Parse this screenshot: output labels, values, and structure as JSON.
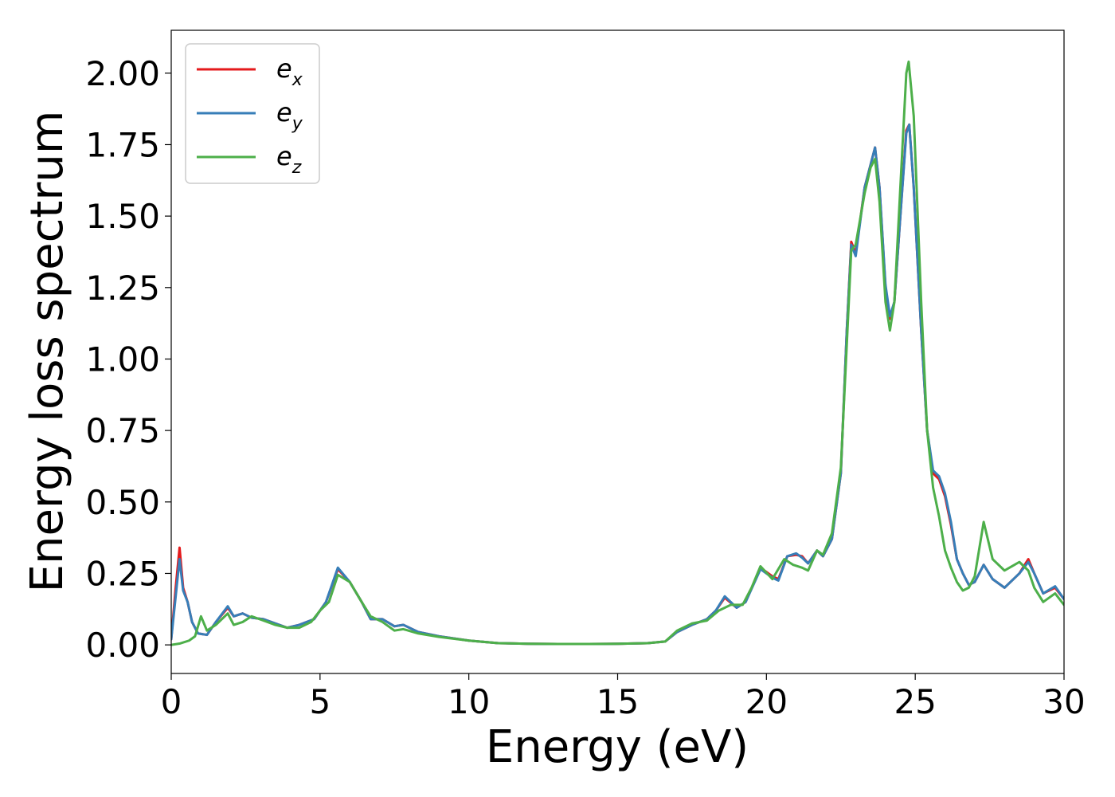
{
  "chart_data": {
    "type": "line",
    "xlabel": "Energy (eV)",
    "ylabel": "Energy loss spectrum",
    "xlim": [
      0,
      30
    ],
    "ylim": [
      -0.1,
      2.15
    ],
    "xticks": [
      0,
      5,
      10,
      15,
      20,
      25,
      30
    ],
    "xtick_labels": [
      "0",
      "5",
      "10",
      "15",
      "20",
      "25",
      "30"
    ],
    "yticks": [
      0.0,
      0.25,
      0.5,
      0.75,
      1.0,
      1.25,
      1.5,
      1.75,
      2.0
    ],
    "ytick_labels": [
      "0.00",
      "0.25",
      "0.50",
      "0.75",
      "1.00",
      "1.25",
      "1.50",
      "1.75",
      "2.00"
    ],
    "grid": false,
    "legend_position": "top-left",
    "series": [
      {
        "name": "e",
        "subscript": "x",
        "color": "#e41a1c",
        "points": [
          [
            0,
            0.02
          ],
          [
            0.15,
            0.2
          ],
          [
            0.28,
            0.34
          ],
          [
            0.4,
            0.2
          ],
          [
            0.55,
            0.15
          ],
          [
            0.7,
            0.08
          ],
          [
            0.9,
            0.04
          ],
          [
            1.2,
            0.035
          ],
          [
            1.5,
            0.08
          ],
          [
            1.9,
            0.13
          ],
          [
            2.1,
            0.1
          ],
          [
            2.4,
            0.11
          ],
          [
            2.7,
            0.095
          ],
          [
            3.1,
            0.09
          ],
          [
            3.5,
            0.075
          ],
          [
            3.9,
            0.06
          ],
          [
            4.3,
            0.07
          ],
          [
            4.8,
            0.09
          ],
          [
            5.2,
            0.15
          ],
          [
            5.6,
            0.265
          ],
          [
            6.0,
            0.22
          ],
          [
            6.4,
            0.15
          ],
          [
            6.7,
            0.09
          ],
          [
            7.1,
            0.09
          ],
          [
            7.5,
            0.065
          ],
          [
            7.8,
            0.07
          ],
          [
            8.3,
            0.045
          ],
          [
            9.0,
            0.03
          ],
          [
            10.0,
            0.015
          ],
          [
            11.0,
            0.006
          ],
          [
            12.0,
            0.004
          ],
          [
            13.0,
            0.003
          ],
          [
            14.0,
            0.003
          ],
          [
            15.0,
            0.004
          ],
          [
            16.0,
            0.006
          ],
          [
            16.6,
            0.012
          ],
          [
            17.0,
            0.045
          ],
          [
            17.5,
            0.07
          ],
          [
            18.0,
            0.09
          ],
          [
            18.3,
            0.12
          ],
          [
            18.6,
            0.165
          ],
          [
            19.0,
            0.13
          ],
          [
            19.3,
            0.15
          ],
          [
            19.8,
            0.27
          ],
          [
            20.2,
            0.24
          ],
          [
            20.4,
            0.23
          ],
          [
            20.7,
            0.31
          ],
          [
            21.0,
            0.315
          ],
          [
            21.2,
            0.31
          ],
          [
            21.4,
            0.285
          ],
          [
            21.7,
            0.33
          ],
          [
            21.9,
            0.31
          ],
          [
            22.2,
            0.37
          ],
          [
            22.5,
            0.6
          ],
          [
            22.7,
            1.1
          ],
          [
            22.85,
            1.41
          ],
          [
            23.0,
            1.37
          ],
          [
            23.3,
            1.6
          ],
          [
            23.5,
            1.68
          ],
          [
            23.65,
            1.74
          ],
          [
            23.8,
            1.6
          ],
          [
            24.0,
            1.25
          ],
          [
            24.15,
            1.14
          ],
          [
            24.3,
            1.2
          ],
          [
            24.5,
            1.5
          ],
          [
            24.7,
            1.8
          ],
          [
            24.8,
            1.82
          ],
          [
            24.95,
            1.6
          ],
          [
            25.2,
            1.1
          ],
          [
            25.4,
            0.75
          ],
          [
            25.6,
            0.6
          ],
          [
            25.8,
            0.58
          ],
          [
            26.0,
            0.52
          ],
          [
            26.2,
            0.42
          ],
          [
            26.4,
            0.3
          ],
          [
            26.6,
            0.25
          ],
          [
            26.8,
            0.21
          ],
          [
            27.0,
            0.22
          ],
          [
            27.3,
            0.28
          ],
          [
            27.6,
            0.23
          ],
          [
            28.0,
            0.2
          ],
          [
            28.5,
            0.25
          ],
          [
            28.8,
            0.3
          ],
          [
            29.0,
            0.25
          ],
          [
            29.3,
            0.18
          ],
          [
            29.7,
            0.2
          ],
          [
            30.0,
            0.16
          ]
        ]
      },
      {
        "name": "e",
        "subscript": "y",
        "color": "#377eb8",
        "points": [
          [
            0,
            0.02
          ],
          [
            0.15,
            0.17
          ],
          [
            0.28,
            0.3
          ],
          [
            0.4,
            0.19
          ],
          [
            0.55,
            0.15
          ],
          [
            0.7,
            0.08
          ],
          [
            0.9,
            0.04
          ],
          [
            1.2,
            0.035
          ],
          [
            1.5,
            0.08
          ],
          [
            1.9,
            0.135
          ],
          [
            2.1,
            0.1
          ],
          [
            2.4,
            0.11
          ],
          [
            2.7,
            0.095
          ],
          [
            3.1,
            0.09
          ],
          [
            3.5,
            0.075
          ],
          [
            3.9,
            0.06
          ],
          [
            4.3,
            0.07
          ],
          [
            4.8,
            0.09
          ],
          [
            5.2,
            0.15
          ],
          [
            5.6,
            0.27
          ],
          [
            6.0,
            0.22
          ],
          [
            6.4,
            0.15
          ],
          [
            6.7,
            0.09
          ],
          [
            7.1,
            0.09
          ],
          [
            7.5,
            0.065
          ],
          [
            7.8,
            0.07
          ],
          [
            8.3,
            0.045
          ],
          [
            9.0,
            0.03
          ],
          [
            10.0,
            0.015
          ],
          [
            11.0,
            0.006
          ],
          [
            12.0,
            0.004
          ],
          [
            13.0,
            0.003
          ],
          [
            14.0,
            0.003
          ],
          [
            15.0,
            0.004
          ],
          [
            16.0,
            0.006
          ],
          [
            16.6,
            0.012
          ],
          [
            17.0,
            0.045
          ],
          [
            17.5,
            0.07
          ],
          [
            18.0,
            0.09
          ],
          [
            18.3,
            0.12
          ],
          [
            18.6,
            0.17
          ],
          [
            19.0,
            0.13
          ],
          [
            19.3,
            0.15
          ],
          [
            19.8,
            0.265
          ],
          [
            20.2,
            0.235
          ],
          [
            20.4,
            0.225
          ],
          [
            20.7,
            0.31
          ],
          [
            21.0,
            0.32
          ],
          [
            21.2,
            0.305
          ],
          [
            21.4,
            0.285
          ],
          [
            21.7,
            0.33
          ],
          [
            21.9,
            0.31
          ],
          [
            22.2,
            0.37
          ],
          [
            22.5,
            0.6
          ],
          [
            22.7,
            1.1
          ],
          [
            22.85,
            1.4
          ],
          [
            23.0,
            1.36
          ],
          [
            23.3,
            1.6
          ],
          [
            23.5,
            1.68
          ],
          [
            23.65,
            1.74
          ],
          [
            23.8,
            1.6
          ],
          [
            24.0,
            1.26
          ],
          [
            24.15,
            1.15
          ],
          [
            24.3,
            1.2
          ],
          [
            24.5,
            1.5
          ],
          [
            24.7,
            1.79
          ],
          [
            24.8,
            1.82
          ],
          [
            24.95,
            1.6
          ],
          [
            25.2,
            1.1
          ],
          [
            25.4,
            0.75
          ],
          [
            25.6,
            0.61
          ],
          [
            25.8,
            0.59
          ],
          [
            26.0,
            0.53
          ],
          [
            26.2,
            0.43
          ],
          [
            26.4,
            0.3
          ],
          [
            26.6,
            0.25
          ],
          [
            26.8,
            0.21
          ],
          [
            27.0,
            0.22
          ],
          [
            27.3,
            0.28
          ],
          [
            27.6,
            0.23
          ],
          [
            28.0,
            0.2
          ],
          [
            28.5,
            0.25
          ],
          [
            28.8,
            0.29
          ],
          [
            29.0,
            0.25
          ],
          [
            29.3,
            0.18
          ],
          [
            29.7,
            0.205
          ],
          [
            30.0,
            0.16
          ]
        ]
      },
      {
        "name": "e",
        "subscript": "z",
        "color": "#4daf4a",
        "points": [
          [
            0,
            0.0
          ],
          [
            0.3,
            0.005
          ],
          [
            0.6,
            0.015
          ],
          [
            0.8,
            0.03
          ],
          [
            1.0,
            0.1
          ],
          [
            1.2,
            0.05
          ],
          [
            1.5,
            0.07
          ],
          [
            1.9,
            0.11
          ],
          [
            2.1,
            0.07
          ],
          [
            2.4,
            0.08
          ],
          [
            2.7,
            0.1
          ],
          [
            3.1,
            0.085
          ],
          [
            3.5,
            0.07
          ],
          [
            3.9,
            0.06
          ],
          [
            4.3,
            0.06
          ],
          [
            4.7,
            0.08
          ],
          [
            5.0,
            0.12
          ],
          [
            5.3,
            0.15
          ],
          [
            5.6,
            0.245
          ],
          [
            6.0,
            0.22
          ],
          [
            6.4,
            0.15
          ],
          [
            6.7,
            0.1
          ],
          [
            7.1,
            0.08
          ],
          [
            7.5,
            0.05
          ],
          [
            7.8,
            0.055
          ],
          [
            8.3,
            0.04
          ],
          [
            9.0,
            0.028
          ],
          [
            10.0,
            0.015
          ],
          [
            11.0,
            0.006
          ],
          [
            12.0,
            0.004
          ],
          [
            13.0,
            0.003
          ],
          [
            14.0,
            0.003
          ],
          [
            15.0,
            0.004
          ],
          [
            16.0,
            0.006
          ],
          [
            16.6,
            0.012
          ],
          [
            17.0,
            0.05
          ],
          [
            17.5,
            0.075
          ],
          [
            18.0,
            0.085
          ],
          [
            18.4,
            0.12
          ],
          [
            18.8,
            0.14
          ],
          [
            19.2,
            0.14
          ],
          [
            19.5,
            0.2
          ],
          [
            19.8,
            0.275
          ],
          [
            20.2,
            0.23
          ],
          [
            20.6,
            0.3
          ],
          [
            20.9,
            0.28
          ],
          [
            21.2,
            0.27
          ],
          [
            21.4,
            0.26
          ],
          [
            21.7,
            0.33
          ],
          [
            21.9,
            0.315
          ],
          [
            22.2,
            0.39
          ],
          [
            22.5,
            0.62
          ],
          [
            22.7,
            1.05
          ],
          [
            22.85,
            1.38
          ],
          [
            23.0,
            1.4
          ],
          [
            23.3,
            1.58
          ],
          [
            23.5,
            1.67
          ],
          [
            23.65,
            1.7
          ],
          [
            23.8,
            1.55
          ],
          [
            24.0,
            1.2
          ],
          [
            24.15,
            1.1
          ],
          [
            24.3,
            1.2
          ],
          [
            24.5,
            1.6
          ],
          [
            24.7,
            2.0
          ],
          [
            24.78,
            2.04
          ],
          [
            24.95,
            1.85
          ],
          [
            25.2,
            1.2
          ],
          [
            25.4,
            0.75
          ],
          [
            25.6,
            0.55
          ],
          [
            25.8,
            0.45
          ],
          [
            26.0,
            0.33
          ],
          [
            26.2,
            0.27
          ],
          [
            26.4,
            0.22
          ],
          [
            26.6,
            0.19
          ],
          [
            26.8,
            0.2
          ],
          [
            27.0,
            0.24
          ],
          [
            27.3,
            0.43
          ],
          [
            27.6,
            0.3
          ],
          [
            28.0,
            0.26
          ],
          [
            28.5,
            0.29
          ],
          [
            28.8,
            0.26
          ],
          [
            29.0,
            0.2
          ],
          [
            29.3,
            0.15
          ],
          [
            29.7,
            0.18
          ],
          [
            30.0,
            0.14
          ]
        ]
      }
    ]
  }
}
